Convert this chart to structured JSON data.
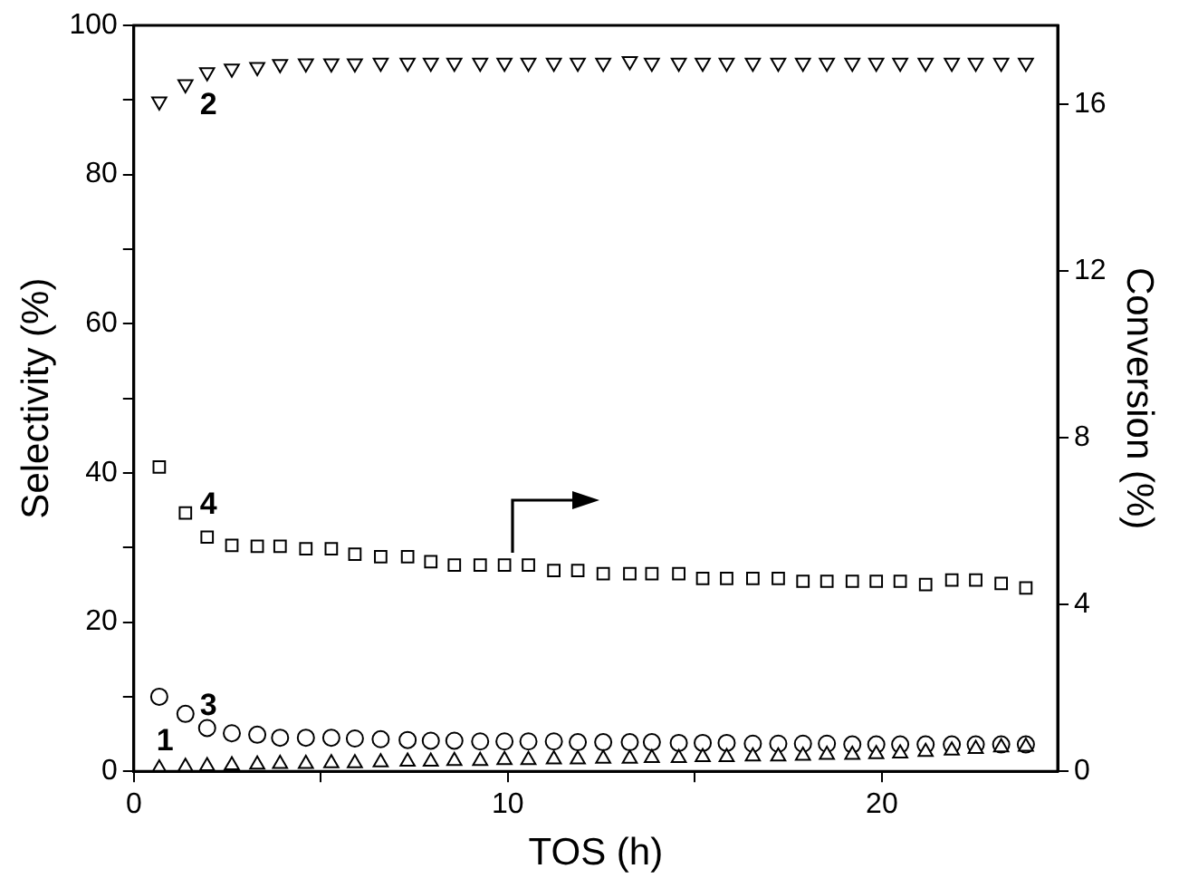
{
  "chart_data": {
    "type": "scatter",
    "xlabel": "TOS (h)",
    "ylabel": "Selectivity (%)",
    "y2label": "Conversion (%)",
    "xlim": [
      0,
      24.7
    ],
    "xticks": [
      0,
      {
        "value": 5,
        "label": null
      },
      10,
      {
        "value": 15,
        "label": null
      },
      20
    ],
    "ylim": [
      0,
      100
    ],
    "yticks": [
      0,
      {
        "value": 10,
        "label": null
      },
      20,
      {
        "value": 30,
        "label": null
      },
      40,
      {
        "value": 50,
        "label": null
      },
      60,
      {
        "value": 70,
        "label": null
      },
      80,
      {
        "value": 90,
        "label": null
      },
      100
    ],
    "y2lim": [
      0,
      17.9
    ],
    "y2ticks": [
      0,
      4,
      8,
      12,
      16
    ],
    "grid": false,
    "legend": false,
    "x": [
      0.68,
      1.38,
      1.96,
      2.62,
      3.3,
      3.91,
      4.6,
      5.28,
      5.91,
      6.6,
      7.32,
      7.94,
      8.57,
      9.26,
      9.91,
      10.55,
      11.23,
      11.87,
      12.55,
      13.26,
      13.85,
      14.57,
      15.21,
      15.85,
      16.55,
      17.23,
      17.89,
      18.53,
      19.21,
      19.85,
      20.49,
      21.17,
      21.87,
      22.51,
      23.19,
      23.85
    ],
    "series": [
      {
        "name": "1",
        "color": "#000000",
        "marker": "triangle",
        "values": [
          0.4,
          0.6,
          0.7,
          0.8,
          0.9,
          1.0,
          1.0,
          1.1,
          1.1,
          1.2,
          1.3,
          1.3,
          1.4,
          1.4,
          1.5,
          1.5,
          1.6,
          1.6,
          1.7,
          1.7,
          1.8,
          1.8,
          1.9,
          1.9,
          2.0,
          2.0,
          2.1,
          2.2,
          2.2,
          2.3,
          2.4,
          2.6,
          2.8,
          3.0,
          3.2,
          3.3
        ]
      },
      {
        "name": "2",
        "color": "#000000",
        "marker": "triangle-down",
        "values": [
          89.8,
          92.1,
          93.7,
          94.2,
          94.4,
          94.8,
          94.9,
          94.9,
          94.9,
          95,
          95,
          95,
          95,
          95,
          95,
          95,
          95,
          95,
          95,
          95.2,
          95,
          95,
          95,
          95,
          95,
          95,
          95,
          95,
          95,
          95,
          95,
          95,
          95,
          95,
          95,
          95
        ]
      },
      {
        "name": "3",
        "color": "#000000",
        "marker": "circle",
        "values": [
          10.0,
          7.7,
          5.8,
          5.1,
          4.9,
          4.5,
          4.5,
          4.5,
          4.4,
          4.3,
          4.2,
          4.1,
          4.1,
          4.0,
          4.0,
          4.0,
          4.0,
          3.9,
          3.9,
          3.9,
          3.9,
          3.8,
          3.8,
          3.8,
          3.7,
          3.7,
          3.7,
          3.7,
          3.6,
          3.6,
          3.6,
          3.6,
          3.6,
          3.6,
          3.6,
          3.6
        ]
      },
      {
        "name": "4",
        "color": "#000000",
        "marker": "square",
        "axis": "y2",
        "values": [
          7.3,
          6.2,
          5.62,
          5.42,
          5.4,
          5.4,
          5.34,
          5.34,
          5.21,
          5.15,
          5.15,
          5.03,
          4.95,
          4.95,
          4.95,
          4.95,
          4.82,
          4.82,
          4.74,
          4.74,
          4.74,
          4.74,
          4.63,
          4.63,
          4.63,
          4.63,
          4.56,
          4.56,
          4.56,
          4.56,
          4.56,
          4.48,
          4.59,
          4.59,
          4.51,
          4.4
        ]
      }
    ]
  }
}
